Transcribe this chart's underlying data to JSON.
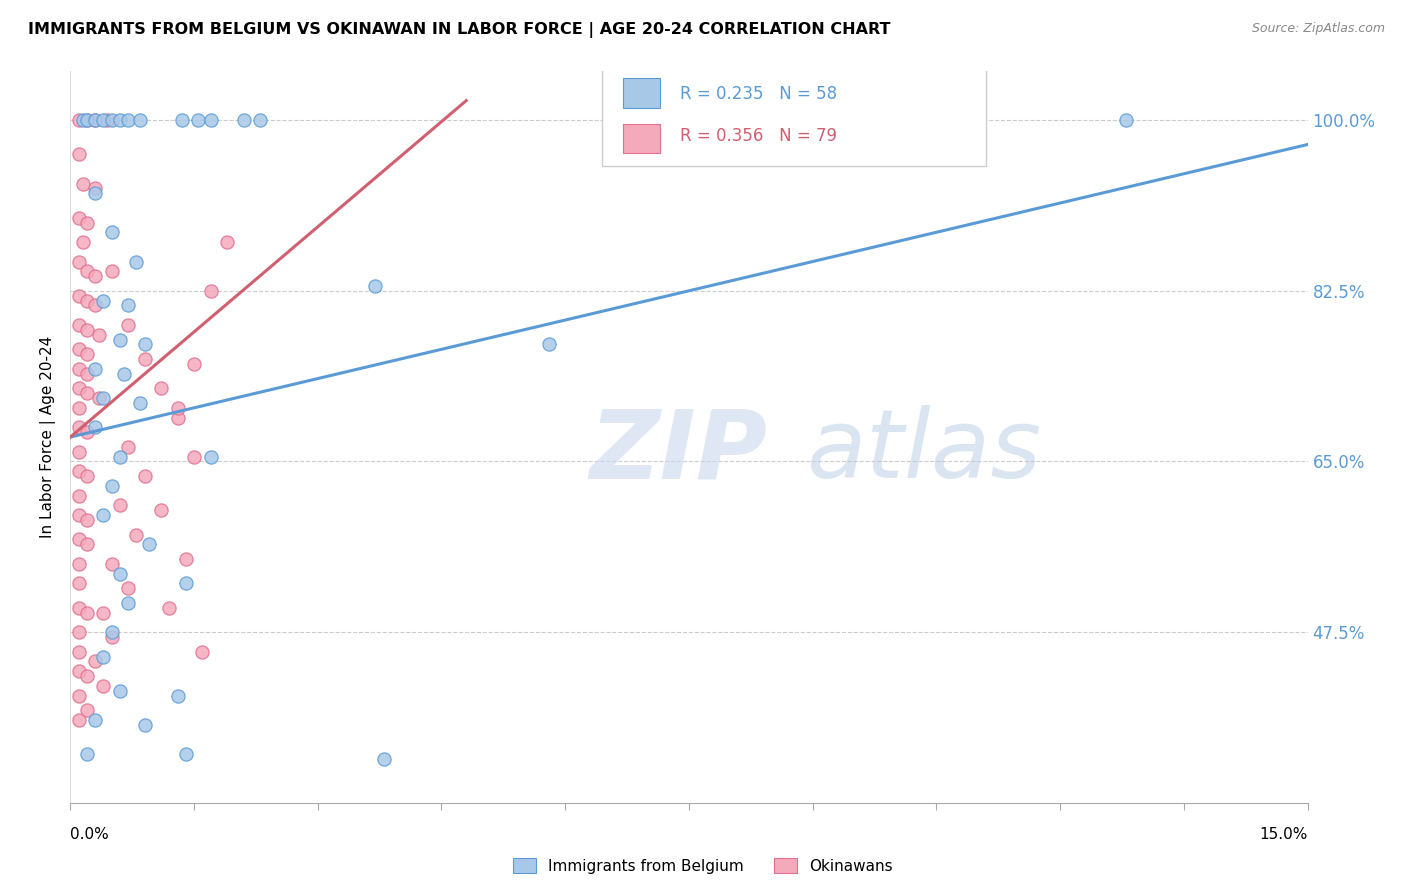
{
  "title": "IMMIGRANTS FROM BELGIUM VS OKINAWAN IN LABOR FORCE | AGE 20-24 CORRELATION CHART",
  "source": "Source: ZipAtlas.com",
  "ylabel": "In Labor Force | Age 20-24",
  "ytick_labels": [
    "100.0%",
    "82.5%",
    "65.0%",
    "47.5%"
  ],
  "ytick_values": [
    1.0,
    0.825,
    0.65,
    0.475
  ],
  "xtick_labels": [
    "0.0%",
    "",
    "",
    "",
    "",
    "",
    "",
    "",
    "",
    "",
    "15.0%"
  ],
  "xmin": 0.0,
  "xmax": 0.15,
  "ymin": 0.3,
  "ymax": 1.05,
  "legend_blue_R": 0.235,
  "legend_blue_N": 58,
  "legend_pink_R": 0.356,
  "legend_pink_N": 79,
  "blue_scatter": [
    [
      0.0015,
      1.0
    ],
    [
      0.002,
      1.0
    ],
    [
      0.003,
      1.0
    ],
    [
      0.004,
      1.0
    ],
    [
      0.005,
      1.0
    ],
    [
      0.006,
      1.0
    ],
    [
      0.007,
      1.0
    ],
    [
      0.0085,
      1.0
    ],
    [
      0.0135,
      1.0
    ],
    [
      0.0155,
      1.0
    ],
    [
      0.017,
      1.0
    ],
    [
      0.021,
      1.0
    ],
    [
      0.023,
      1.0
    ],
    [
      0.003,
      0.925
    ],
    [
      0.005,
      0.885
    ],
    [
      0.008,
      0.855
    ],
    [
      0.004,
      0.815
    ],
    [
      0.007,
      0.81
    ],
    [
      0.006,
      0.775
    ],
    [
      0.009,
      0.77
    ],
    [
      0.003,
      0.745
    ],
    [
      0.0065,
      0.74
    ],
    [
      0.004,
      0.715
    ],
    [
      0.0085,
      0.71
    ],
    [
      0.003,
      0.685
    ],
    [
      0.006,
      0.655
    ],
    [
      0.017,
      0.655
    ],
    [
      0.005,
      0.625
    ],
    [
      0.004,
      0.595
    ],
    [
      0.0095,
      0.565
    ],
    [
      0.006,
      0.535
    ],
    [
      0.014,
      0.525
    ],
    [
      0.007,
      0.505
    ],
    [
      0.005,
      0.475
    ],
    [
      0.004,
      0.45
    ],
    [
      0.006,
      0.415
    ],
    [
      0.013,
      0.41
    ],
    [
      0.003,
      0.385
    ],
    [
      0.009,
      0.38
    ],
    [
      0.002,
      0.35
    ],
    [
      0.014,
      0.35
    ],
    [
      0.068,
      1.0
    ],
    [
      0.128,
      1.0
    ],
    [
      0.037,
      0.83
    ],
    [
      0.058,
      0.77
    ],
    [
      0.038,
      0.345
    ]
  ],
  "pink_scatter": [
    [
      0.001,
      1.0
    ],
    [
      0.002,
      1.0
    ],
    [
      0.003,
      1.0
    ],
    [
      0.0045,
      1.0
    ],
    [
      0.001,
      0.965
    ],
    [
      0.0015,
      0.935
    ],
    [
      0.003,
      0.93
    ],
    [
      0.001,
      0.9
    ],
    [
      0.002,
      0.895
    ],
    [
      0.0015,
      0.875
    ],
    [
      0.001,
      0.855
    ],
    [
      0.002,
      0.845
    ],
    [
      0.003,
      0.84
    ],
    [
      0.001,
      0.82
    ],
    [
      0.002,
      0.815
    ],
    [
      0.003,
      0.81
    ],
    [
      0.001,
      0.79
    ],
    [
      0.002,
      0.785
    ],
    [
      0.0035,
      0.78
    ],
    [
      0.001,
      0.765
    ],
    [
      0.002,
      0.76
    ],
    [
      0.001,
      0.745
    ],
    [
      0.002,
      0.74
    ],
    [
      0.001,
      0.725
    ],
    [
      0.002,
      0.72
    ],
    [
      0.0035,
      0.715
    ],
    [
      0.001,
      0.705
    ],
    [
      0.001,
      0.685
    ],
    [
      0.002,
      0.68
    ],
    [
      0.001,
      0.66
    ],
    [
      0.001,
      0.64
    ],
    [
      0.002,
      0.635
    ],
    [
      0.001,
      0.615
    ],
    [
      0.001,
      0.595
    ],
    [
      0.002,
      0.59
    ],
    [
      0.001,
      0.57
    ],
    [
      0.002,
      0.565
    ],
    [
      0.001,
      0.545
    ],
    [
      0.001,
      0.525
    ],
    [
      0.001,
      0.5
    ],
    [
      0.002,
      0.495
    ],
    [
      0.001,
      0.475
    ],
    [
      0.001,
      0.455
    ],
    [
      0.001,
      0.435
    ],
    [
      0.002,
      0.43
    ],
    [
      0.001,
      0.41
    ],
    [
      0.001,
      0.385
    ],
    [
      0.005,
      0.845
    ],
    [
      0.007,
      0.79
    ],
    [
      0.009,
      0.755
    ],
    [
      0.011,
      0.725
    ],
    [
      0.013,
      0.695
    ],
    [
      0.007,
      0.665
    ],
    [
      0.009,
      0.635
    ],
    [
      0.006,
      0.605
    ],
    [
      0.008,
      0.575
    ],
    [
      0.005,
      0.545
    ],
    [
      0.007,
      0.52
    ],
    [
      0.004,
      0.495
    ],
    [
      0.005,
      0.47
    ],
    [
      0.003,
      0.445
    ],
    [
      0.004,
      0.42
    ],
    [
      0.002,
      0.395
    ],
    [
      0.019,
      0.875
    ],
    [
      0.017,
      0.825
    ],
    [
      0.015,
      0.75
    ],
    [
      0.013,
      0.705
    ],
    [
      0.015,
      0.655
    ],
    [
      0.011,
      0.6
    ],
    [
      0.014,
      0.55
    ],
    [
      0.012,
      0.5
    ],
    [
      0.016,
      0.455
    ]
  ],
  "blue_line_x": [
    0.0,
    0.15
  ],
  "blue_line_y": [
    0.675,
    0.975
  ],
  "pink_line_x": [
    0.0,
    0.048
  ],
  "pink_line_y": [
    0.675,
    1.02
  ],
  "blue_dot_color": "#A8C8E8",
  "blue_edge_color": "#5B9BD5",
  "pink_dot_color": "#F4AABB",
  "pink_edge_color": "#E07090",
  "blue_line_color": "#5B9BD5",
  "pink_line_color": "#D06070",
  "grid_color": "#CCCCCC",
  "right_tick_color": "#5B9BD5",
  "watermark_zip_color": "#C8D8EC",
  "watermark_atlas_color": "#B8CCE4"
}
